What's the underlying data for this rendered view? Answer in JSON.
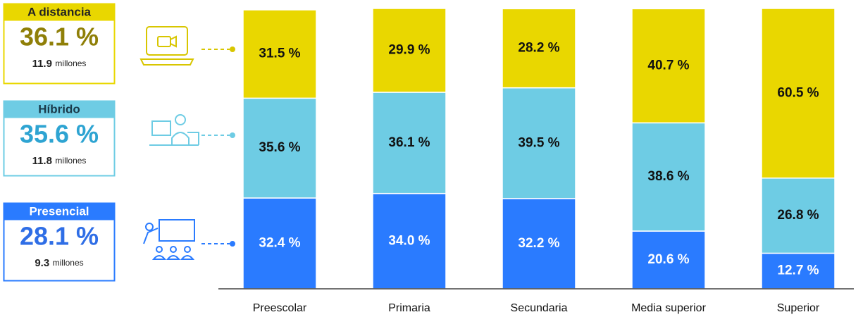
{
  "chart_data": {
    "type": "stacked_bar",
    "categories": [
      "Preescolar",
      "Primaria",
      "Secundaria",
      "Media superior",
      "Superior"
    ],
    "ylim": [
      0,
      100
    ],
    "series": [
      {
        "name": "Presencial",
        "color": "#2a7bff",
        "label_color": "#ffffff",
        "legend_color": "#2f6ee6",
        "legend_text_color": "#ffffff",
        "total": 28.1,
        "total_label": "28.1 %",
        "count": "9.3",
        "count_unit": "millones",
        "values": [
          32.4,
          34.0,
          32.2,
          20.6,
          12.7
        ],
        "value_labels": [
          "32.4 %",
          "34.0 %",
          "32.2 %",
          "20.6 %",
          "12.7 %"
        ]
      },
      {
        "name": "Híbrido",
        "color": "#6ecce4",
        "label_color": "#111111",
        "legend_color": "#2ea4d2",
        "legend_text_color": "#1a3a4a",
        "total": 35.6,
        "total_label": "35.6 %",
        "count": "11.8",
        "count_unit": "millones",
        "values": [
          35.6,
          36.1,
          39.5,
          38.6,
          26.8
        ],
        "value_labels": [
          "35.6 %",
          "36.1 %",
          "39.5 %",
          "38.6 %",
          "26.8 %"
        ]
      },
      {
        "name": "A distancia",
        "color": "#e9d700",
        "label_color": "#111111",
        "legend_color": "#8f7f08",
        "legend_text_color": "#222222",
        "total": 36.1,
        "total_label": "36.1 %",
        "count": "11.9",
        "count_unit": "millones",
        "values": [
          31.5,
          29.9,
          28.2,
          40.7,
          60.5
        ],
        "value_labels": [
          "31.5 %",
          "29.9 %",
          "28.2 %",
          "40.7 %",
          "60.5 %"
        ]
      }
    ]
  }
}
